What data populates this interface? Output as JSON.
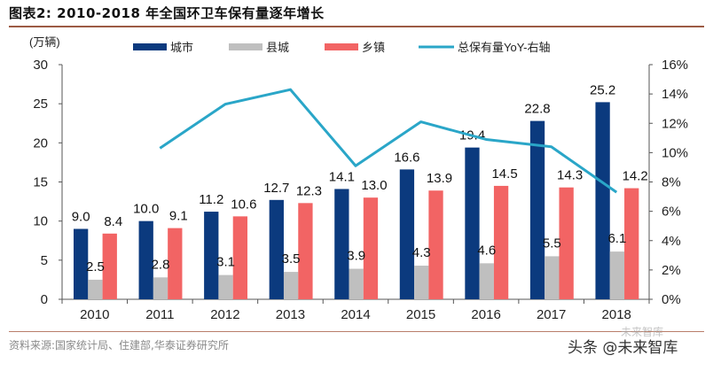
{
  "header": {
    "title": "图表2:  2010-2018 年全国环卫车保有量逐年增长"
  },
  "footer": {
    "source": "资料来源:国家统计局、住建部,华泰证券研究所",
    "watermark": "头条 @未来智库",
    "watermark_faint": "未来智库"
  },
  "colors": {
    "city": "#0b3a7e",
    "county": "#bfbfbf",
    "town": "#f26464",
    "yoy": "#2aa6c8"
  },
  "chart_data": {
    "type": "bar",
    "title": "2010-2018 年全国环卫车保有量逐年增长",
    "unit_label": "(万辆)",
    "categories": [
      "2010",
      "2011",
      "2012",
      "2013",
      "2014",
      "2015",
      "2016",
      "2017",
      "2018"
    ],
    "series": [
      {
        "name": "城市",
        "type": "bar",
        "axis": "left",
        "values": [
          9.0,
          10.0,
          11.2,
          12.7,
          14.1,
          16.6,
          19.4,
          22.8,
          25.2
        ]
      },
      {
        "name": "县城",
        "type": "bar",
        "axis": "left",
        "values": [
          2.5,
          2.8,
          3.1,
          3.5,
          3.9,
          4.3,
          4.6,
          5.5,
          6.1
        ]
      },
      {
        "name": "乡镇",
        "type": "bar",
        "axis": "left",
        "values": [
          8.4,
          9.1,
          10.6,
          12.3,
          13.0,
          13.9,
          14.5,
          14.3,
          14.2
        ]
      },
      {
        "name": "总保有量YoY-右轴",
        "type": "line",
        "axis": "right",
        "values": [
          null,
          10.3,
          13.3,
          14.3,
          9.1,
          12.1,
          10.9,
          10.4,
          7.3
        ]
      }
    ],
    "y_left": {
      "min": 0,
      "max": 30,
      "ticks": [
        "0",
        "5",
        "10",
        "15",
        "20",
        "25",
        "30"
      ]
    },
    "y_right": {
      "min": 0,
      "max": 16,
      "ticks": [
        "0%",
        "2%",
        "4%",
        "6%",
        "8%",
        "10%",
        "12%",
        "14%",
        "16%"
      ]
    },
    "legend_position": "top",
    "grid": false
  }
}
